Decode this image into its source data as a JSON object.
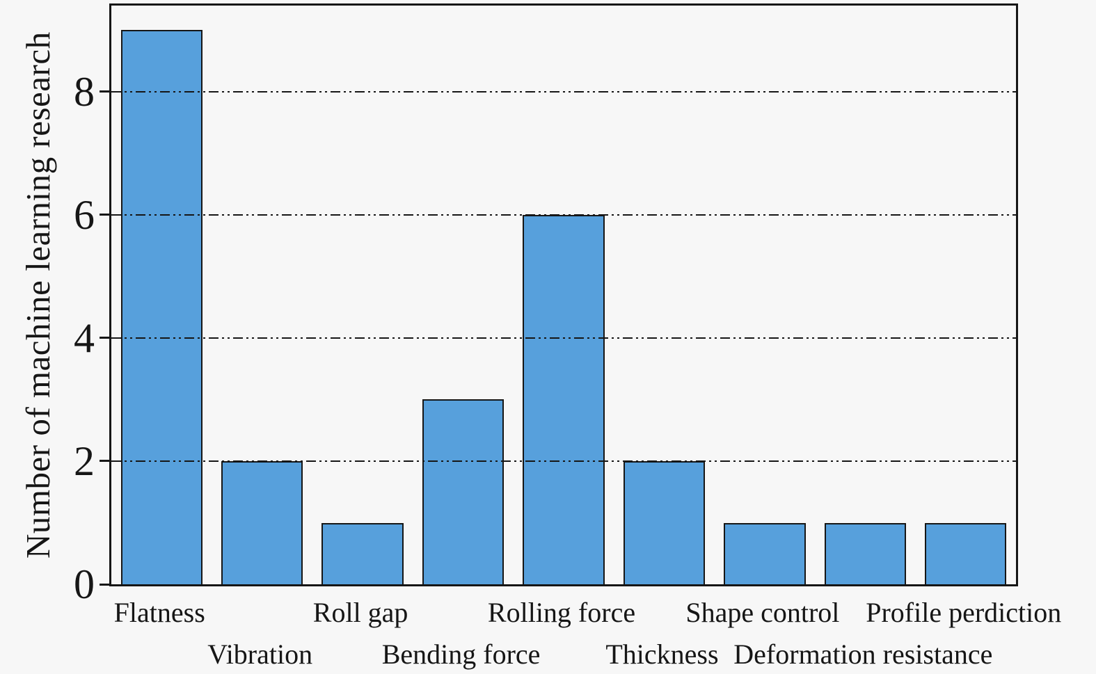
{
  "figure": {
    "background_color": "#f7f7f7",
    "text_color": "#161616"
  },
  "chart_data": {
    "type": "bar",
    "title": "",
    "xlabel": "",
    "ylabel": "Number of machine learning research",
    "categories": [
      "Flatness",
      "Vibration",
      "Roll gap",
      "Bending force",
      "Rolling force",
      "Thickness",
      "Shape control",
      "Deformation resistance",
      "Profile perdiction"
    ],
    "values": [
      9,
      2,
      1,
      3,
      6,
      2,
      1,
      1,
      1
    ],
    "yticks": [
      0,
      2,
      4,
      6,
      8
    ],
    "ylim": [
      0,
      9.4
    ],
    "grid": {
      "values": [
        2,
        4,
        6,
        8
      ],
      "style": "dash-dot-dot",
      "color": "#161616",
      "drawn_over_bars": true
    },
    "bar_fill_color": "#57A0DC",
    "bar_edge_color": "#161616",
    "x_label_layout": "staggered-two-rows",
    "legend": "none"
  }
}
